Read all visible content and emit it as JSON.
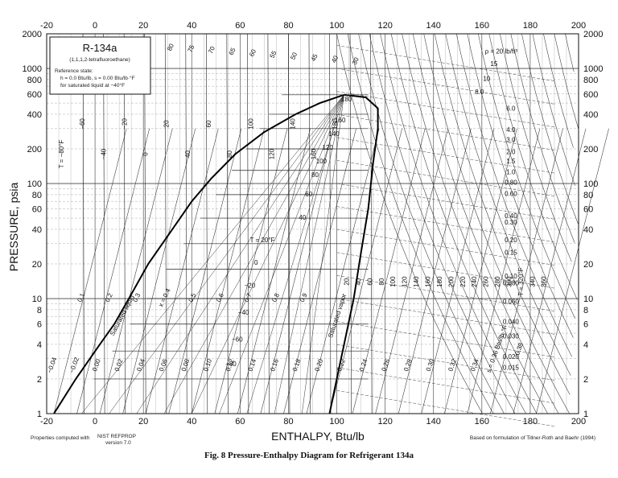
{
  "chart_data": {
    "type": "line",
    "title": "R-134a",
    "subtitle": "(1,1,1,2-tetrafluoroethane)",
    "reference_state": [
      "Reference state:",
      "h = 0.0 Btu/lb,  s = 0.00 Btu/lb·°F",
      "for saturated liquid at −40°F"
    ],
    "xlabel": "ENTHALPY, Btu/lb",
    "ylabel": "PRESSURE, psia",
    "xlim": [
      -20,
      200
    ],
    "ylim": [
      1,
      2000
    ],
    "yscale": "log",
    "grid": true,
    "x_ticks": [
      "-20",
      "0",
      "20",
      "40",
      "60",
      "80",
      "100",
      "120",
      "140",
      "160",
      "180",
      "200"
    ],
    "y_ticks": [
      "1",
      "2",
      "4",
      "6",
      "8",
      "10",
      "20",
      "40",
      "60",
      "80",
      "100",
      "200",
      "400",
      "600",
      "800",
      "1000",
      "2000"
    ],
    "saturation_dome": {
      "critical_point": {
        "h": 103,
        "p": 590
      },
      "saturated_liquid": [
        {
          "h": -17,
          "p": 1
        },
        {
          "h": -8,
          "p": 2
        },
        {
          "h": 2,
          "p": 4
        },
        {
          "h": 8,
          "p": 6
        },
        {
          "h": 14,
          "p": 10
        },
        {
          "h": 22,
          "p": 20
        },
        {
          "h": 32,
          "p": 40
        },
        {
          "h": 40,
          "p": 70
        },
        {
          "h": 48,
          "p": 110
        },
        {
          "h": 58,
          "p": 180
        },
        {
          "h": 70,
          "p": 280
        },
        {
          "h": 83,
          "p": 400
        },
        {
          "h": 93,
          "p": 500
        },
        {
          "h": 103,
          "p": 590
        }
      ],
      "saturated_vapor": [
        {
          "h": 103,
          "p": 590
        },
        {
          "h": 112,
          "p": 560
        },
        {
          "h": 117,
          "p": 450
        },
        {
          "h": 117,
          "p": 300
        },
        {
          "h": 115,
          "p": 150
        },
        {
          "h": 113,
          "p": 60
        },
        {
          "h": 110,
          "p": 25
        },
        {
          "h": 107,
          "p": 10
        },
        {
          "h": 103,
          "p": 4
        },
        {
          "h": 100,
          "p": 2
        },
        {
          "h": 97,
          "p": 1
        }
      ],
      "liquid_label": "Saturated liquid",
      "vapor_label": "Saturated vapor"
    },
    "annotations": {
      "isotherms_liquid": [
        "T = −80°F",
        "−60",
        "−40",
        "−20",
        "0",
        "20",
        "40",
        "60",
        "80",
        "100",
        "120",
        "140",
        "160",
        "180"
      ],
      "isotherms_dome": [
        "180",
        "160",
        "140",
        "120",
        "100",
        "80",
        "60",
        "40",
        "T = 20°F",
        "0",
        "−20",
        "−40",
        "−60",
        "−80"
      ],
      "isotherms_vapor": [
        "20",
        "40",
        "60",
        "80",
        "100",
        "120",
        "140",
        "160",
        "180",
        "200",
        "220",
        "240",
        "260",
        "280",
        "300",
        "T = 320°F",
        "340",
        "360"
      ],
      "qualities": [
        "0.1",
        "0.2",
        "0.3",
        "x = 0.4",
        "0.5",
        "0.6",
        "0.7",
        "0.8",
        "0.9"
      ],
      "entropies": [
        "−0.04",
        "−0.02",
        "0.00",
        "0.02",
        "0.04",
        "0.06",
        "0.08",
        "0.10",
        "0.12",
        "0.14",
        "0.16",
        "0.18",
        "0.20",
        "0.22",
        "0.24",
        "0.26",
        "0.28",
        "0.30",
        "0.32",
        "0.34",
        "s = 0.36 Btu/lb·°F",
        "0.38"
      ],
      "densities": [
        "ρ = 20 lb/ft³",
        "15",
        "10",
        "8.0",
        "6.0",
        "4.0",
        "3.0",
        "2.0",
        "1.5",
        "1.0",
        "0.80",
        "0.60",
        "0.40",
        "0.30",
        "0.20",
        "0.15",
        "0.10",
        "0.080",
        "0.060",
        "0.040",
        "0.030",
        "0.020",
        "0.015"
      ],
      "liquid_top_isotherms": [
        "80",
        "75",
        "70",
        "65",
        "60",
        "55",
        "50",
        "45",
        "40",
        "30"
      ]
    },
    "footer_left": "Properties computed with",
    "footer_left_source": [
      "NIST REFPROP",
      "version 7.0"
    ],
    "footer_right": "Based on formulation of Tillner-Roth and Baehr (1994)",
    "caption": "Fig. 8    Pressure-Enthalpy Diagram for Refrigerant 134a"
  }
}
